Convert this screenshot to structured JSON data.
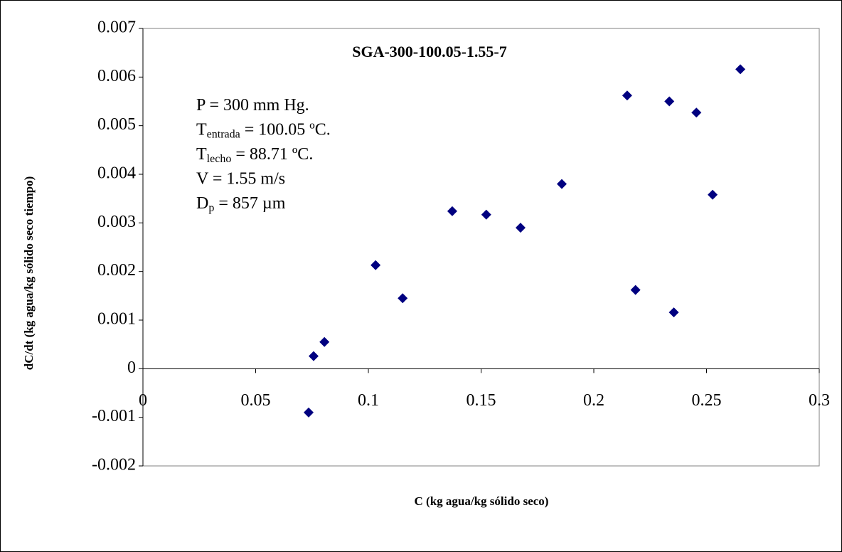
{
  "chart_data": {
    "type": "scatter",
    "title": "SGA-300-100.05-1.55-7",
    "xlabel": "C (kg agua/kg sólido seco)",
    "ylabel": "dC/dt (kg agua/kg sólido seco tiempo)",
    "annotations": [
      [
        {
          "text": "P = 300 mm Hg."
        }
      ],
      [
        {
          "text": "T"
        },
        {
          "sub": "entrada"
        },
        {
          "text": " = 100.05 ºC."
        }
      ],
      [
        {
          "text": "T"
        },
        {
          "sub": "lecho"
        },
        {
          "text": " = 88.71 ºC."
        }
      ],
      [
        {
          "text": "V = 1.55 m/s"
        }
      ],
      [
        {
          "text": "D"
        },
        {
          "sub": "p"
        },
        {
          "text": " = 857 µm"
        }
      ]
    ],
    "series": [
      {
        "color": "#000080",
        "x": [
          0.0735,
          0.0757,
          0.0805,
          0.1032,
          0.1152,
          0.1372,
          0.1523,
          0.1675,
          0.1858,
          0.2148,
          0.2185,
          0.2335,
          0.2355,
          0.2455,
          0.2527,
          0.265
        ],
        "values": [
          -0.0009,
          0.00026,
          0.00055,
          0.00213,
          0.00145,
          0.00324,
          0.00317,
          0.0029,
          0.0038,
          0.00562,
          0.00162,
          0.0055,
          0.00116,
          0.00527,
          0.00358,
          0.00616
        ]
      }
    ],
    "xlim": [
      0,
      0.3
    ],
    "xticks": [
      0,
      0.05,
      0.1,
      0.15,
      0.2,
      0.25,
      0.3
    ],
    "ylim": [
      -0.002,
      0.007
    ],
    "yticks": [
      -0.002,
      -0.001,
      0,
      0.001,
      0.002,
      0.003,
      0.004,
      0.005,
      0.006,
      0.007
    ]
  }
}
